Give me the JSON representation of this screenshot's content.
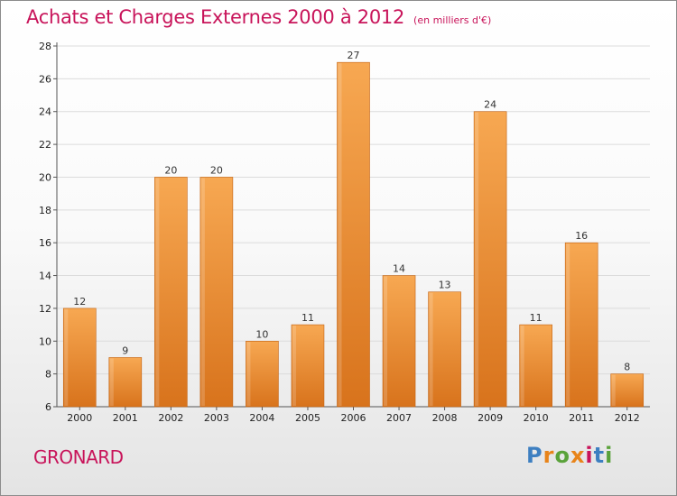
{
  "header": {
    "title": "Achats et Charges Externes 2000 à 2012",
    "subtitle": "(en milliers d'€)"
  },
  "footer": {
    "commune": "GRONARD",
    "logo_text": "Proxiti",
    "logo_colors": [
      "#3d7fc1",
      "#e8841a",
      "#5aa23a",
      "#e8841a",
      "#c8145a",
      "#3d7fc1",
      "#5aa23a"
    ]
  },
  "colors": {
    "bar_top": "#f7a852",
    "bar_bottom": "#d8731c",
    "bar_edge": "#c26212",
    "accent": "#c8145a"
  },
  "chart_data": {
    "type": "bar",
    "title": "Achats et Charges Externes 2000 à 2012",
    "subtitle": "(en milliers d'€)",
    "categories": [
      "2000",
      "2001",
      "2002",
      "2003",
      "2004",
      "2005",
      "2006",
      "2007",
      "2008",
      "2009",
      "2010",
      "2011",
      "2012"
    ],
    "values": [
      12,
      9,
      20,
      20,
      10,
      11,
      27,
      14,
      13,
      24,
      11,
      16,
      8
    ],
    "ylim": [
      6,
      28
    ],
    "yticks": [
      6,
      8,
      10,
      12,
      14,
      16,
      18,
      20,
      22,
      24,
      26,
      28
    ],
    "grid": true,
    "legend": "none"
  }
}
